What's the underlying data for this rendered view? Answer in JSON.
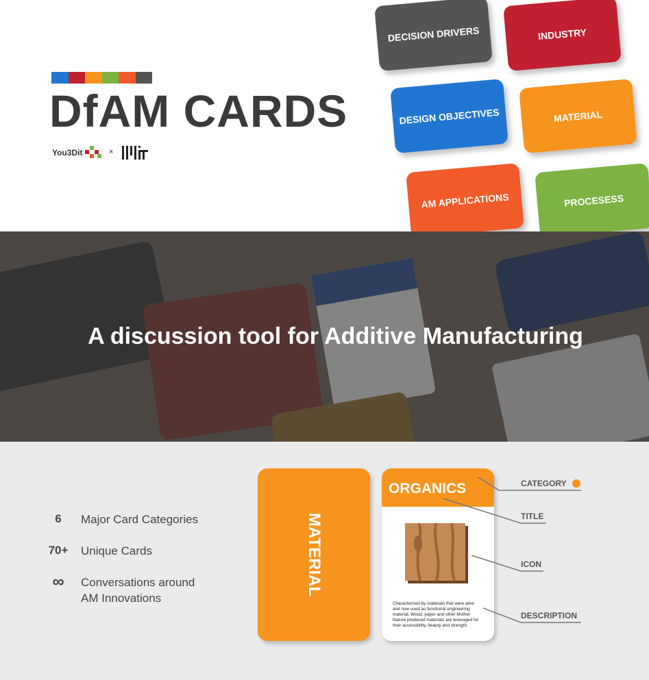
{
  "header": {
    "color_strip": [
      "#2176d2",
      "#c0202f",
      "#f7941d",
      "#7cb342",
      "#f15a29",
      "#545454"
    ],
    "title": "DfAM CARDS",
    "partner": "You3Dit",
    "separator": "×"
  },
  "cards": [
    {
      "label": "DECISION DRIVERS",
      "color": "#545454"
    },
    {
      "label": "INDUSTRY",
      "color": "#c0202f"
    },
    {
      "label": "DESIGN OBJECTIVES",
      "color": "#2176d2"
    },
    {
      "label": "MATERIAL",
      "color": "#f7941d"
    },
    {
      "label": "AM APPLICATIONS",
      "color": "#f15a29"
    },
    {
      "label": "PROCESESS",
      "color": "#7cb342"
    }
  ],
  "banner": {
    "headline": "A discussion tool for Additive Manufacturing"
  },
  "stats": [
    {
      "value": "6",
      "label": "Major Card Categories"
    },
    {
      "value": "70+",
      "label": "Unique Cards"
    },
    {
      "value": "∞",
      "label": "Conversations around AM Innovations"
    }
  ],
  "card_anatomy": {
    "back_label": "MATERIAL",
    "front_title": "ORGANICS",
    "description": "Characterized by materials that were alive and now used as functional engineering material. Wood, paper and other Mother Nature produced materials are leveraged for their accessibility, beauty and strength.",
    "callouts": [
      "CATEGORY",
      "TITLE",
      "ICON",
      "DESCRIPTION"
    ]
  }
}
